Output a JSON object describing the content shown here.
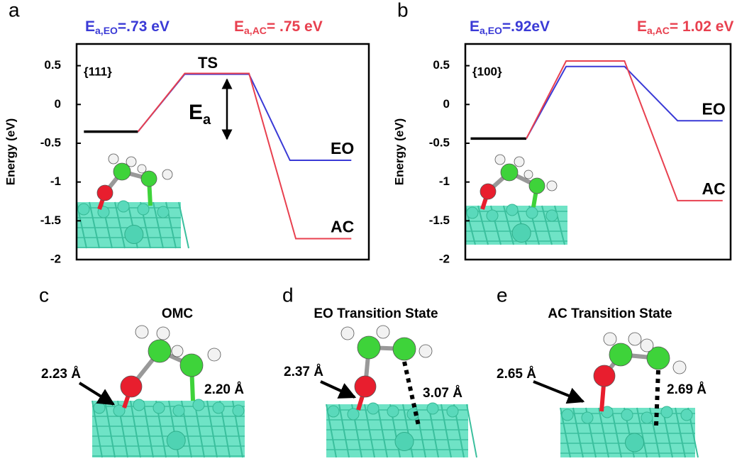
{
  "chart_data": [
    {
      "type": "line",
      "panel": "a",
      "facet": "{111}",
      "y_label": "Energy (eV)",
      "ylim": [
        -2,
        0.78
      ],
      "yticks": [
        0.5,
        0,
        -0.5,
        -1,
        -1.5,
        -2
      ],
      "xlim": [
        0,
        10
      ],
      "annotations": {
        "ts": "TS",
        "ea_symbol": "E",
        "ea_subscript": "a"
      },
      "barriers": [
        {
          "symbol": "E",
          "subscript": "a,EO",
          "text": "=.73 eV",
          "color": "#3a3ad6"
        },
        {
          "symbol": "E",
          "subscript": "a,AC",
          "text": "= .75 eV",
          "color": "#e8404f"
        }
      ],
      "series": [
        {
          "color": "#000000",
          "x": [
            0.25,
            2.1
          ],
          "values": [
            -0.35,
            -0.35
          ]
        },
        {
          "name": "EO",
          "color": "#3a3ad6",
          "x": [
            2.1,
            3.7,
            5.9,
            7.3,
            9.4
          ],
          "values": [
            -0.35,
            0.39,
            0.39,
            -0.72,
            -0.72
          ]
        },
        {
          "name": "AC",
          "color": "#e8404f",
          "x": [
            2.1,
            3.7,
            5.9,
            7.5,
            9.4
          ],
          "values": [
            -0.35,
            0.4,
            0.4,
            -1.73,
            -1.73
          ]
        }
      ]
    },
    {
      "type": "line",
      "panel": "b",
      "facet": "{100}",
      "y_label": "Energy (eV)",
      "ylim": [
        -2,
        0.78
      ],
      "yticks": [
        0.5,
        0,
        -0.5,
        -1,
        -1.5,
        -2
      ],
      "xlim": [
        0,
        10
      ],
      "barriers": [
        {
          "symbol": "E",
          "subscript": "a,EO",
          "text": "=.92eV",
          "color": "#3a3ad6"
        },
        {
          "symbol": "E",
          "subscript": "a,AC",
          "text": "= 1.02 eV",
          "color": "#e8404f"
        }
      ],
      "series": [
        {
          "color": "#000000",
          "x": [
            0.2,
            2.3
          ],
          "values": [
            -0.44,
            -0.44
          ]
        },
        {
          "name": "EO",
          "color": "#3a3ad6",
          "x": [
            2.3,
            3.8,
            6.0,
            8.0,
            9.7
          ],
          "values": [
            -0.44,
            0.49,
            0.49,
            -0.21,
            -0.21
          ]
        },
        {
          "name": "AC",
          "color": "#e8404f",
          "x": [
            2.3,
            3.8,
            6.0,
            8.0,
            9.7
          ],
          "values": [
            -0.44,
            0.56,
            0.56,
            -1.24,
            -1.24
          ]
        }
      ]
    }
  ],
  "structures": [
    {
      "panel": "c",
      "title": "OMC",
      "distances": [
        "2.23 Å",
        "2.20 Å"
      ]
    },
    {
      "panel": "d",
      "title": "EO Transition State",
      "distances": [
        "2.37 Å",
        "3.07 Å"
      ]
    },
    {
      "panel": "e",
      "title": "AC Transition State",
      "distances": [
        "2.65 Å",
        "2.69 Å"
      ]
    }
  ]
}
